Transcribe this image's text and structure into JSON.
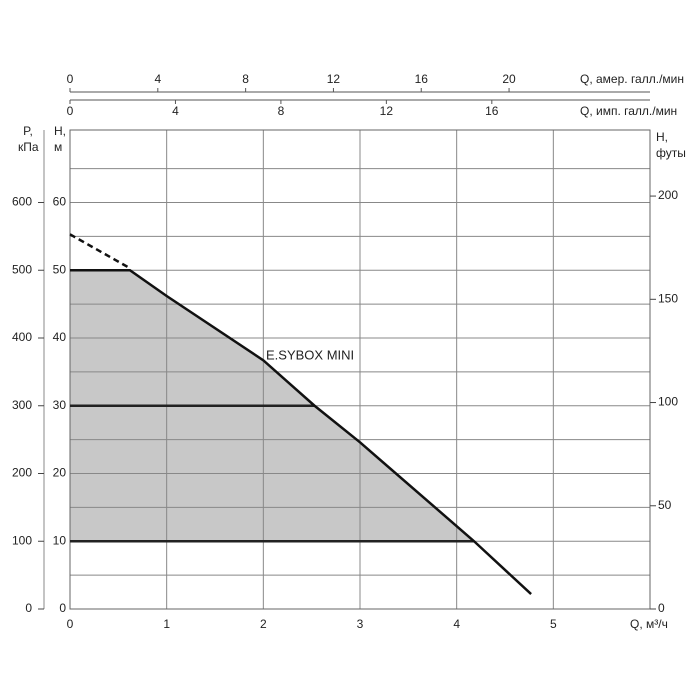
{
  "chart_data": {
    "type": "line",
    "x_label": "Q, м³/ч",
    "xlim": [
      0,
      6
    ],
    "xticks": [
      0,
      1,
      2,
      3,
      4,
      5
    ],
    "ylabel": [
      "H,",
      "м"
    ],
    "ylim": [
      0,
      70.7
    ],
    "yticks": [
      0,
      10,
      20,
      30,
      40,
      50,
      60
    ],
    "y_minor_ticks": [
      5,
      15,
      25,
      35,
      45,
      55,
      65
    ],
    "y2label": [
      "H,",
      "футы"
    ],
    "y2lim": [
      0,
      232
    ],
    "y2ticks": [
      0,
      50,
      100,
      150,
      200
    ],
    "p_axis": {
      "label": [
        "P,",
        "кПа"
      ],
      "lim": [
        0,
        707
      ],
      "ticks": [
        0,
        100,
        200,
        300,
        400,
        500,
        600
      ]
    },
    "top_axes": [
      {
        "label": "Q, амер. галл./мин",
        "lim": [
          0,
          26.42
        ],
        "ticks": [
          0,
          4,
          8,
          12,
          16,
          20
        ]
      },
      {
        "label": "Q, имп. галл./мин",
        "lim": [
          0,
          22.0
        ],
        "ticks": [
          0,
          4,
          8,
          12,
          16
        ]
      }
    ],
    "grid": true,
    "series": [
      {
        "name": "E.SYBOX MINI",
        "color": "#111111",
        "x": [
          0,
          0.62,
          1,
          2,
          2.53,
          3,
          4.18,
          4.77
        ],
        "values": [
          50,
          50,
          46.2,
          36.7,
          30,
          24.6,
          10,
          2.2
        ]
      },
      {
        "color": "#111111",
        "dashed": true,
        "x": [
          0,
          0.62
        ],
        "values": [
          55.3,
          50.3
        ]
      }
    ],
    "fill_floor": 10,
    "fill_color": "#c8c8c8",
    "reference_lines": [
      10,
      30
    ]
  }
}
